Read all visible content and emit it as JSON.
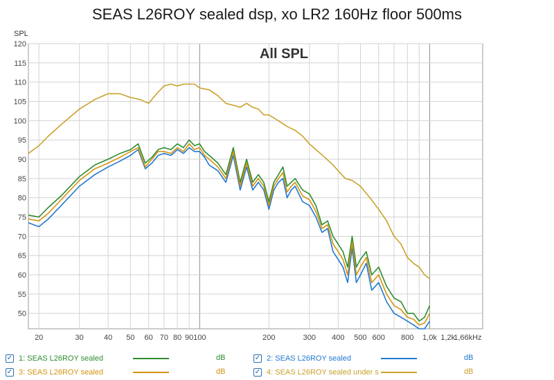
{
  "chart_title": "SEAS L26ROY sealed dsp, xo LR2 160Hz floor 500ms",
  "chart_data": {
    "type": "line",
    "title": "SEAS L26ROY sealed dsp, xo LR2 160Hz floor 500ms",
    "annotation": "All SPL",
    "ylabel": "SPL",
    "xlabel_unit": "Hz",
    "x_scale": "log",
    "xlim": [
      18,
      1700
    ],
    "ylim": [
      46,
      120
    ],
    "y_ticks": [
      50,
      55,
      60,
      65,
      70,
      75,
      80,
      85,
      90,
      95,
      100,
      105,
      110,
      115,
      120
    ],
    "x_ticks": [
      {
        "v": 20,
        "label": "20"
      },
      {
        "v": 30,
        "label": "30"
      },
      {
        "v": 40,
        "label": "40"
      },
      {
        "v": 50,
        "label": "50"
      },
      {
        "v": 60,
        "label": "60"
      },
      {
        "v": 70,
        "label": "70"
      },
      {
        "v": 80,
        "label": "80"
      },
      {
        "v": 90,
        "label": "90"
      },
      {
        "v": 100,
        "label": "100"
      },
      {
        "v": 200,
        "label": "200"
      },
      {
        "v": 300,
        "label": "300"
      },
      {
        "v": 400,
        "label": "400"
      },
      {
        "v": 500,
        "label": "500"
      },
      {
        "v": 600,
        "label": "600"
      },
      {
        "v": 800,
        "label": "800"
      },
      {
        "v": 1000,
        "label": "1,0k"
      },
      {
        "v": 1200,
        "label": "1,2k"
      },
      {
        "v": 1660,
        "label": "1,66kHz"
      }
    ],
    "grid": true,
    "legend_position": "bottom",
    "series": [
      {
        "name": "1: SEAS L26ROY sealed",
        "color": "#2e8b2e",
        "unit": "dB",
        "x": [
          18,
          20,
          22,
          25,
          30,
          35,
          40,
          45,
          50,
          54,
          58,
          62,
          66,
          70,
          75,
          80,
          85,
          90,
          95,
          100,
          105,
          110,
          120,
          130,
          140,
          150,
          160,
          170,
          180,
          190,
          200,
          210,
          220,
          230,
          240,
          250,
          260,
          280,
          300,
          320,
          340,
          360,
          380,
          400,
          420,
          440,
          460,
          480,
          500,
          530,
          560,
          600,
          650,
          700,
          750,
          800,
          850,
          900,
          950,
          1000
        ],
        "y": [
          75.5,
          75,
          77.5,
          80.5,
          85.5,
          88.5,
          90,
          91.5,
          92.5,
          94,
          89,
          90.5,
          92.5,
          93,
          92.5,
          94,
          93,
          95,
          93.5,
          94,
          92,
          91,
          89,
          86,
          93,
          84,
          90,
          84,
          86,
          84,
          79,
          84,
          86,
          88,
          83,
          84,
          85,
          82,
          81,
          78,
          73,
          74,
          70,
          68,
          66,
          62,
          70,
          62,
          64,
          66,
          60,
          62,
          57,
          54,
          53,
          50,
          50,
          48,
          49,
          52
        ]
      },
      {
        "name": "2: SEAS L26ROY sealed",
        "color": "#1f78d1",
        "unit": "dB",
        "x": [
          18,
          20,
          22,
          25,
          30,
          35,
          40,
          45,
          50,
          54,
          58,
          62,
          66,
          70,
          75,
          80,
          85,
          90,
          95,
          100,
          105,
          110,
          120,
          130,
          140,
          150,
          160,
          170,
          180,
          190,
          200,
          210,
          220,
          230,
          240,
          250,
          260,
          280,
          300,
          320,
          340,
          360,
          380,
          400,
          420,
          440,
          460,
          480,
          500,
          530,
          560,
          600,
          650,
          700,
          750,
          800,
          850,
          900,
          950,
          1000
        ],
        "y": [
          73.5,
          72.5,
          74.5,
          78,
          83,
          86,
          88,
          89.5,
          91,
          92.5,
          87.5,
          89,
          91,
          91.5,
          91,
          92.5,
          91.5,
          93,
          92,
          92,
          90.5,
          88.5,
          87,
          84,
          91,
          82,
          88,
          82,
          84,
          82,
          77,
          82,
          84,
          85,
          80,
          82,
          83,
          79,
          78,
          75,
          71,
          72,
          66,
          64,
          62,
          58,
          67,
          58,
          60,
          63,
          56,
          58,
          53,
          50,
          49,
          48,
          47,
          46,
          46,
          48
        ]
      },
      {
        "name": "3: SEAS L26ROY sealed",
        "color": "#d4930e",
        "unit": "dB",
        "x": [
          18,
          20,
          22,
          25,
          30,
          35,
          40,
          45,
          50,
          54,
          58,
          62,
          66,
          70,
          75,
          80,
          85,
          90,
          95,
          100,
          105,
          110,
          120,
          130,
          140,
          150,
          160,
          170,
          180,
          190,
          200,
          210,
          220,
          230,
          240,
          250,
          260,
          280,
          300,
          320,
          340,
          360,
          380,
          400,
          420,
          440,
          460,
          480,
          500,
          530,
          560,
          600,
          650,
          700,
          750,
          800,
          850,
          900,
          950,
          1000
        ],
        "y": [
          74.5,
          74,
          76,
          79.5,
          84.5,
          87.5,
          89,
          90.5,
          92,
          93,
          88,
          90,
          92,
          92,
          91.5,
          93,
          92,
          94,
          92.5,
          93,
          91,
          90,
          88,
          85,
          92,
          83,
          89,
          83,
          85,
          83,
          78,
          83,
          85,
          86.5,
          81.5,
          83,
          84,
          80.5,
          79.5,
          76.5,
          72,
          73,
          68,
          66,
          64,
          60,
          68.5,
          60,
          62,
          64.5,
          58,
          60,
          55,
          52,
          51,
          49,
          48.5,
          47,
          47.5,
          50
        ]
      },
      {
        "name": "4: SEAS L26ROY sealed under s",
        "color": "#c9a12a",
        "unit": "dB",
        "x": [
          18,
          20,
          22,
          25,
          30,
          35,
          40,
          45,
          50,
          55,
          60,
          65,
          70,
          75,
          80,
          85,
          90,
          95,
          100,
          110,
          120,
          130,
          140,
          150,
          160,
          170,
          180,
          190,
          200,
          220,
          240,
          260,
          280,
          300,
          320,
          350,
          380,
          400,
          430,
          460,
          500,
          550,
          600,
          650,
          700,
          750,
          800,
          850,
          900,
          950,
          1000
        ],
        "y": [
          91.5,
          93.5,
          96,
          99,
          103,
          105.5,
          107,
          107,
          106,
          105.5,
          104.5,
          107,
          109,
          109.5,
          109,
          109.5,
          109.5,
          109.5,
          108.5,
          108,
          106.5,
          104.5,
          104,
          103.5,
          104.5,
          103.5,
          103,
          101.5,
          101.5,
          100,
          98.5,
          97.5,
          96,
          94,
          92.5,
          90.5,
          88.5,
          87,
          85,
          84.5,
          83,
          80,
          77,
          74,
          70,
          68,
          64.5,
          63,
          62,
          60,
          59
        ]
      }
    ]
  }
}
